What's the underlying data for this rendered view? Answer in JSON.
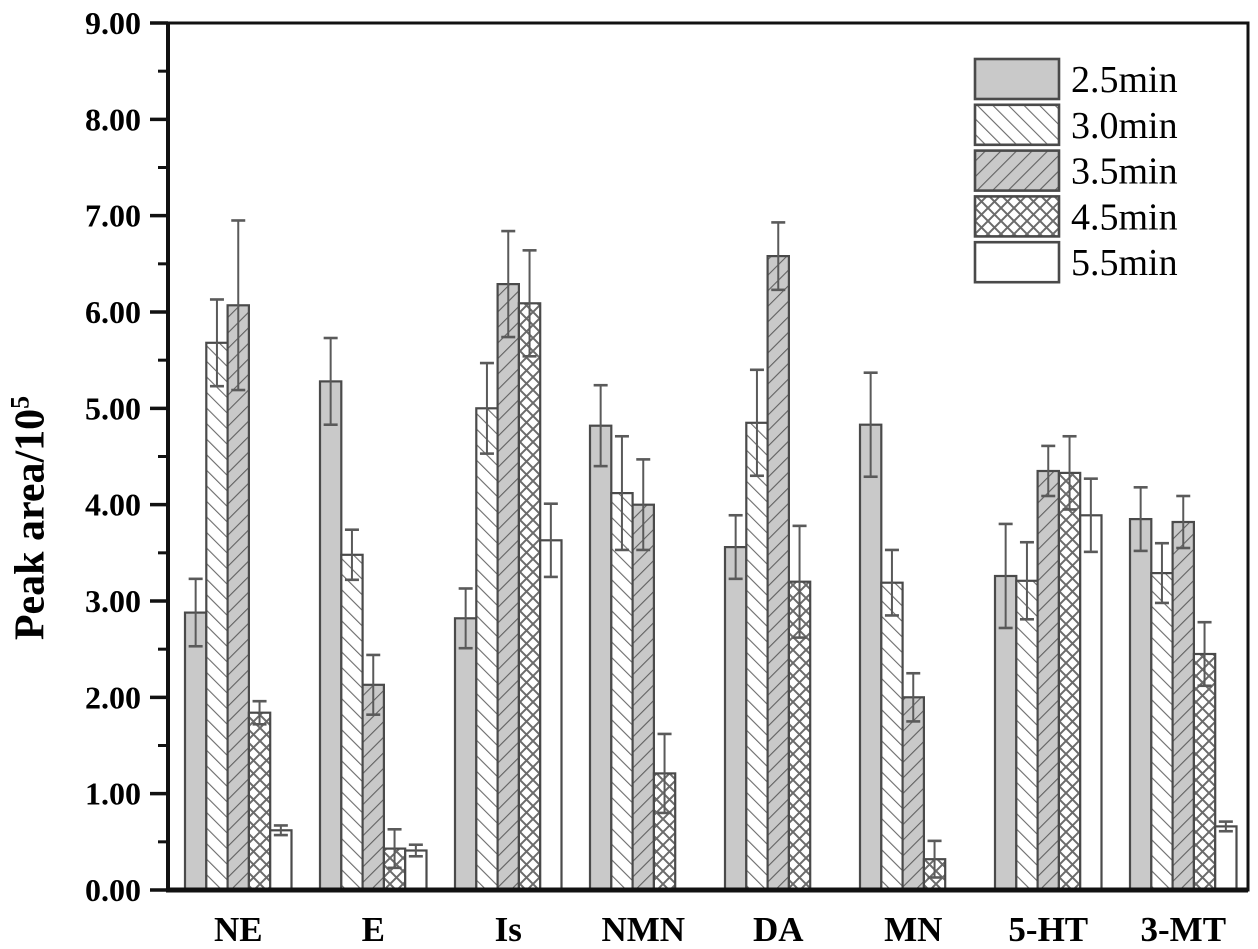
{
  "colors": {
    "background": "#ffffff",
    "bar_gray": "#c9c9c9",
    "bar_white": "#ffffff",
    "bar_border": "#4a4a4a",
    "hatch_line": "#6b6b6b",
    "error_bar": "#5a5a5a",
    "axis": "#111111",
    "text": "#000000"
  },
  "chart_data": {
    "type": "bar",
    "title": "",
    "ylabel_base": "Peak area/10",
    "ylabel_exp": "5",
    "xlabel": "",
    "categories": [
      "NE",
      "E",
      "Is",
      "NMN",
      "DA",
      "MN",
      "5-HT",
      "3-MT"
    ],
    "ylim": [
      0,
      9
    ],
    "ytick_step": 1,
    "ytick_minor_step": 0.5,
    "ytick_labels": [
      "0.00",
      "1.00",
      "2.00",
      "3.00",
      "4.00",
      "5.00",
      "6.00",
      "7.00",
      "8.00",
      "9.00"
    ],
    "grid": false,
    "legend_position": "top-right",
    "error_bars": "plus-minus, capped",
    "series": [
      {
        "name": "2.5min",
        "pattern": "solid-gray",
        "values": [
          2.88,
          5.28,
          2.82,
          4.82,
          3.56,
          4.83,
          3.26,
          3.85
        ],
        "errors": [
          0.35,
          0.45,
          0.31,
          0.42,
          0.33,
          0.54,
          0.54,
          0.33
        ]
      },
      {
        "name": "3.0min",
        "pattern": "diag-forward-white",
        "values": [
          5.68,
          3.48,
          5.0,
          4.12,
          4.85,
          3.19,
          3.21,
          3.29
        ],
        "errors": [
          0.45,
          0.26,
          0.47,
          0.59,
          0.55,
          0.34,
          0.4,
          0.31
        ]
      },
      {
        "name": "3.5min",
        "pattern": "diag-back-gray",
        "values": [
          6.07,
          2.13,
          6.29,
          4.0,
          6.58,
          2.0,
          4.35,
          3.82
        ],
        "errors": [
          0.88,
          0.31,
          0.55,
          0.47,
          0.35,
          0.25,
          0.26,
          0.27
        ]
      },
      {
        "name": "4.5min",
        "pattern": "crosshatch-white",
        "values": [
          1.84,
          0.43,
          6.09,
          1.21,
          3.2,
          0.32,
          4.33,
          2.45
        ],
        "errors": [
          0.12,
          0.2,
          0.55,
          0.41,
          0.58,
          0.19,
          0.38,
          0.33
        ]
      },
      {
        "name": "5.5min",
        "pattern": "solid-white",
        "values": [
          0.62,
          0.41,
          3.63,
          0,
          0,
          0,
          3.89,
          0.66
        ],
        "errors": [
          0.05,
          0.06,
          0.38,
          0,
          0,
          0,
          0.38,
          0.05
        ]
      }
    ]
  }
}
